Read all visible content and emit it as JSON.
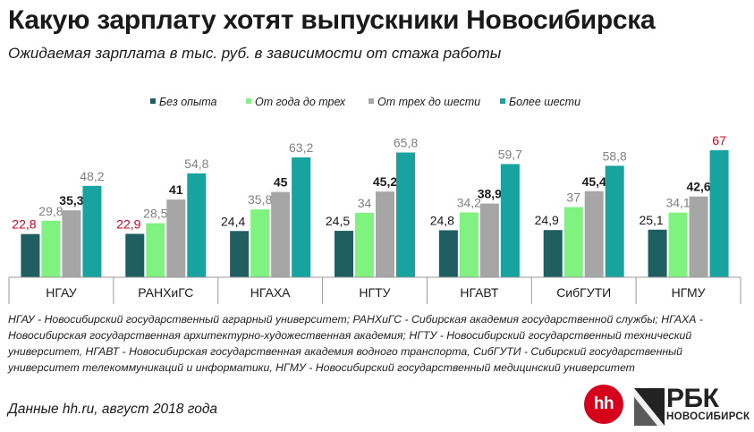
{
  "title": "Какую зарплату хотят выпускники Новосибирска",
  "subtitle": "Ожидаемая зарплата в тыс. руб. в зависимости от стажа работы",
  "chart_data": {
    "type": "bar",
    "categories": [
      "НГАУ",
      "РАНХиГС",
      "НГАХА",
      "НГТУ",
      "НГАВТ",
      "СибГУТИ",
      "НГМУ"
    ],
    "series": [
      {
        "name": "Без опыта",
        "color": "#1f5f61",
        "values": [
          22.8,
          22.9,
          24.4,
          24.5,
          24.8,
          24.9,
          25.1
        ]
      },
      {
        "name": "От года до трех",
        "color": "#7ff27f",
        "values": [
          29.8,
          28.5,
          35.8,
          34,
          34.2,
          37,
          34.1
        ]
      },
      {
        "name": "От трех до шести",
        "color": "#a6a6a6",
        "values": [
          35.3,
          41,
          45,
          45.2,
          38.9,
          45.4,
          42.6
        ]
      },
      {
        "name": "Более шести",
        "color": "#17a3a0",
        "values": [
          48.2,
          54.8,
          63.2,
          65.8,
          59.7,
          58.8,
          67
        ]
      }
    ],
    "labels": [
      [
        "22,8",
        "29,8",
        "35,3",
        "48,2"
      ],
      [
        "22,9",
        "28,5",
        "41",
        "54,8"
      ],
      [
        "24,4",
        "35,8",
        "45",
        "63,2"
      ],
      [
        "24,5",
        "34",
        "45,2",
        "65,8"
      ],
      [
        "24,8",
        "34,2",
        "38,9",
        "59,7"
      ],
      [
        "24,9",
        "37",
        "45,4",
        "58,8"
      ],
      [
        "25,1",
        "34,1",
        "42,6",
        "67"
      ]
    ],
    "highlight_labels": [
      [
        0,
        0
      ],
      [
        1,
        0
      ],
      [
        6,
        3
      ]
    ],
    "highlight_color": "#d6001c",
    "label_colors": [
      "#1a1a1a",
      "#808080",
      "#1a1a1a",
      "#808080"
    ],
    "label_weights": [
      "normal",
      "normal",
      "bold",
      "normal"
    ],
    "ylim": [
      0,
      75
    ],
    "legend_position": "top",
    "grid": false
  },
  "notes": "НГАУ - Новосибирский государственный аграрный университет; РАНХиГС - Сибирская академия государственной службы; НГАХА - Новосибирская государственная архитектурно-художественная академия; НГТУ - Новосибирский государственный технический университет, НГАВТ - Новосибирская государственная академия водного транспорта, СибГУТИ - Сибирский государственный университет телекоммуникаций и информатики, НГМУ - Новосибирский государственный медицинский университет",
  "source": "Данные hh.ru, август 2018 года",
  "logos": {
    "hh": "hh",
    "rbc": "РБК",
    "rbc_city": "НОВОСИБИРСК"
  }
}
